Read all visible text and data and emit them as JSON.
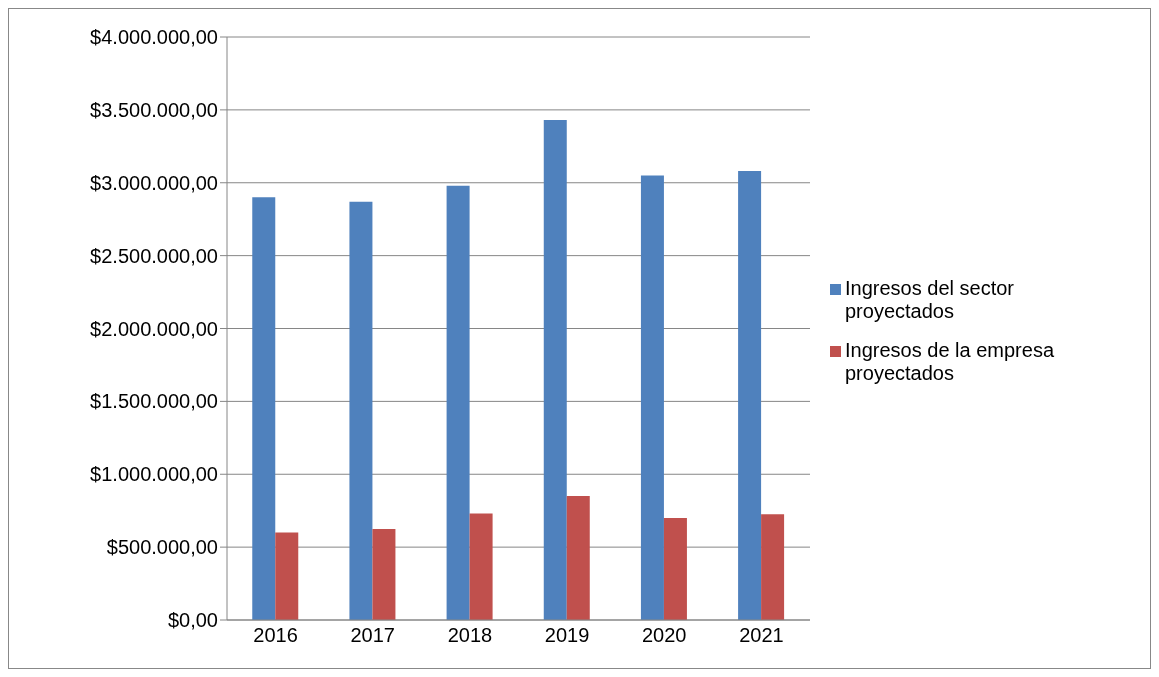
{
  "chart_data": {
    "type": "bar",
    "categories": [
      "2016",
      "2017",
      "2018",
      "2019",
      "2020",
      "2021"
    ],
    "series": [
      {
        "name": "Ingresos del sector proyectados",
        "color": "#4f81bd",
        "values": [
          2900000,
          2870000,
          2980000,
          3430000,
          3050000,
          3080000
        ]
      },
      {
        "name": "Ingresos de la empresa proyectados",
        "color": "#c0504d",
        "values": [
          600000,
          625000,
          730000,
          850000,
          700000,
          725000
        ]
      }
    ],
    "ylim": [
      0,
      4000000
    ],
    "yticks": [
      {
        "value": 0,
        "label": "$0,00"
      },
      {
        "value": 500000,
        "label": "$500.000,00"
      },
      {
        "value": 1000000,
        "label": "$1.000.000,00"
      },
      {
        "value": 1500000,
        "label": "$1.500.000,00"
      },
      {
        "value": 2000000,
        "label": "$2.000.000,00"
      },
      {
        "value": 2500000,
        "label": "$2.500.000,00"
      },
      {
        "value": 3000000,
        "label": "$3.000.000,00"
      },
      {
        "value": 3500000,
        "label": "$3.500.000,00"
      },
      {
        "value": 4000000,
        "label": "$4.000.000,00"
      }
    ],
    "grid": "y",
    "legend": "right"
  }
}
